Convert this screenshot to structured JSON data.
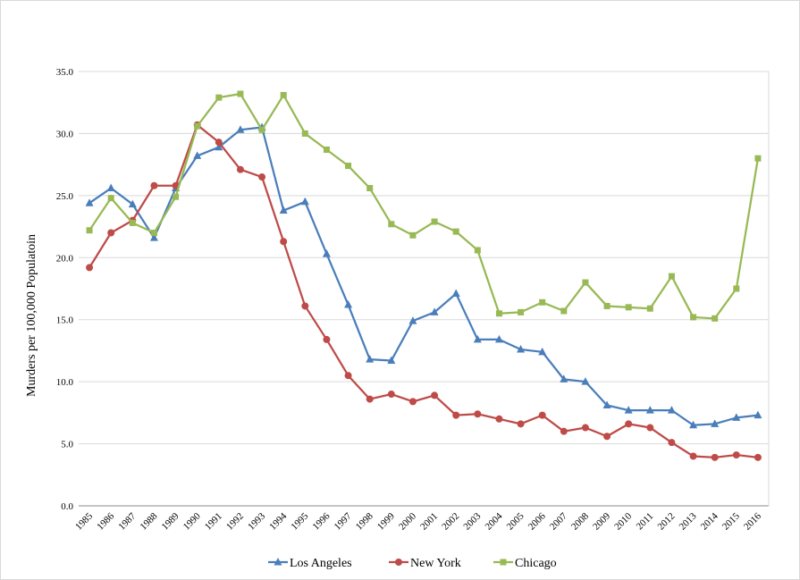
{
  "chart_data": {
    "type": "line",
    "title": "",
    "xlabel": "",
    "ylabel": "Murders per 100,000 Populatoin",
    "ylim": [
      0,
      35
    ],
    "y_ticks": [
      "0.0",
      "5.0",
      "10.0",
      "15.0",
      "20.0",
      "25.0",
      "30.0",
      "35.0"
    ],
    "grid": "horizontal",
    "legend_position": "bottom",
    "categories": [
      "1985",
      "1986",
      "1987",
      "1988",
      "1989",
      "1990",
      "1991",
      "1992",
      "1993",
      "1994",
      "1995",
      "1996",
      "1997",
      "1998",
      "1999",
      "2000",
      "2001",
      "2002",
      "2003",
      "2004",
      "2005",
      "2006",
      "2007",
      "2008",
      "2009",
      "2010",
      "2011",
      "2012",
      "2013",
      "2014",
      "2015",
      "2016"
    ],
    "series": [
      {
        "name": "Los Angeles",
        "color": "#4a7ebb",
        "marker": "triangle",
        "values": [
          24.4,
          25.6,
          24.3,
          21.6,
          25.6,
          28.2,
          28.9,
          30.3,
          30.5,
          23.8,
          24.5,
          20.3,
          16.2,
          11.8,
          11.7,
          14.9,
          15.6,
          17.1,
          13.4,
          13.4,
          12.6,
          12.4,
          10.2,
          10.0,
          8.1,
          7.7,
          7.7,
          7.7,
          6.5,
          6.6,
          7.1,
          7.3
        ]
      },
      {
        "name": "New York",
        "color": "#be4b48",
        "marker": "circle",
        "values": [
          19.2,
          22.0,
          23.0,
          25.8,
          25.8,
          30.7,
          29.3,
          27.1,
          26.5,
          21.3,
          16.1,
          13.4,
          10.5,
          8.6,
          9.0,
          8.4,
          8.9,
          7.3,
          7.4,
          7.0,
          6.6,
          7.3,
          6.0,
          6.3,
          5.6,
          6.6,
          6.3,
          5.1,
          4.0,
          3.9,
          4.1,
          3.9
        ]
      },
      {
        "name": "Chicago",
        "color": "#98b954",
        "marker": "square",
        "values": [
          22.2,
          24.8,
          22.8,
          22.0,
          24.9,
          30.6,
          32.9,
          33.2,
          30.3,
          33.1,
          30.0,
          28.7,
          27.4,
          25.6,
          22.7,
          21.8,
          22.9,
          22.1,
          20.6,
          15.5,
          15.6,
          16.4,
          15.7,
          18.0,
          16.1,
          16.0,
          15.9,
          18.5,
          15.2,
          15.1,
          17.5,
          28.0
        ]
      }
    ]
  }
}
